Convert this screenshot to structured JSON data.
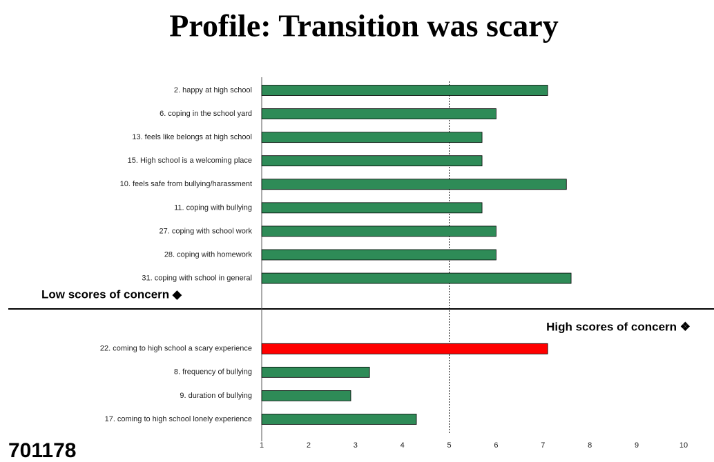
{
  "chart_data": {
    "type": "bar",
    "orientation": "horizontal",
    "title": "Profile: Transition was scary",
    "categories": [
      "2. happy at high school",
      "6. coping in the school yard",
      "13. feels like belongs at high school",
      "15. High school is a welcoming place",
      "10. feels safe from bullying/harassment",
      "11. coping with bullying",
      "27. coping with school work",
      "28. coping with homework",
      "31. coping with school in general",
      null,
      null,
      "22. coming to high school a scary experience",
      "8. frequency of bullying",
      "9.  duration of bullying",
      "17. coming to high school lonely experience"
    ],
    "values": [
      7.1,
      6.0,
      5.7,
      5.7,
      7.5,
      5.7,
      6.0,
      6.0,
      7.6,
      null,
      null,
      7.1,
      3.3,
      2.9,
      4.3
    ],
    "colors": [
      "#2e8b57",
      "#2e8b57",
      "#2e8b57",
      "#2e8b57",
      "#2e8b57",
      "#2e8b57",
      "#2e8b57",
      "#2e8b57",
      "#2e8b57",
      null,
      null,
      "#ff0000",
      "#2e8b57",
      "#2e8b57",
      "#2e8b57"
    ],
    "xlim": [
      1,
      10
    ],
    "xticks": [
      1,
      2,
      3,
      4,
      5,
      6,
      7,
      8,
      9,
      10
    ],
    "reference_line": 5,
    "annotations": [
      "Low scores of concern ◆",
      "High scores of concern ❖",
      "701178"
    ]
  }
}
